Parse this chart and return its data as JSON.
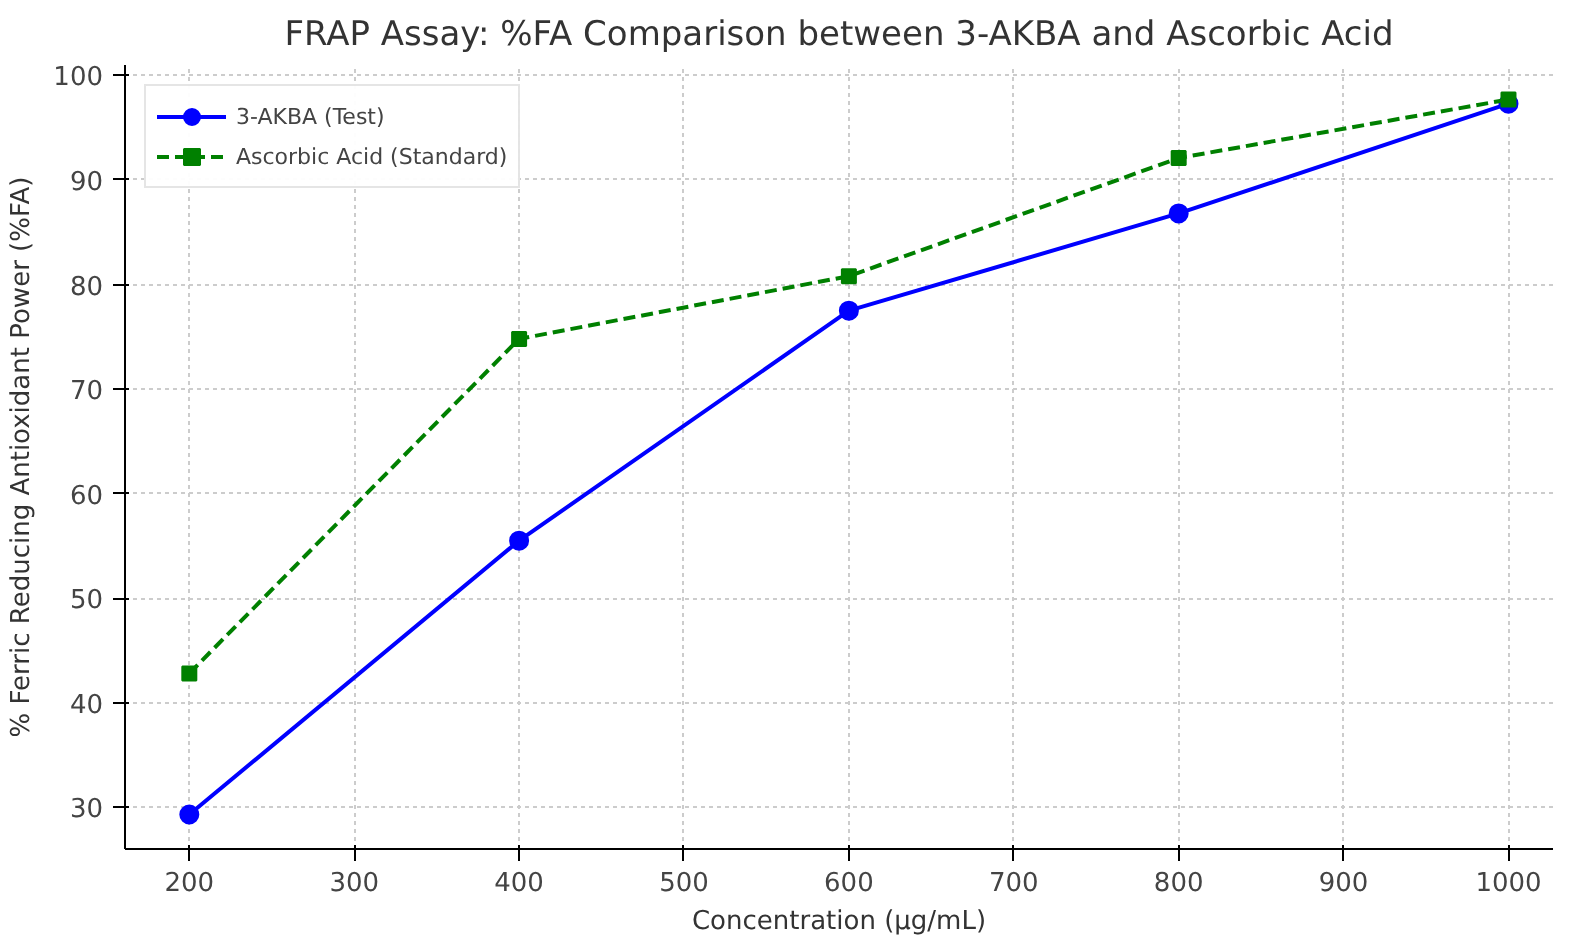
{
  "chart_data": {
    "type": "line",
    "title": "FRAP Assay: %FA Comparison between 3-AKBA and Ascorbic Acid",
    "xlabel": "Concentration (μg/mL)",
    "ylabel": "% Ferric Reducing Antioxidant Power (%FA)",
    "x": [
      200,
      400,
      600,
      800,
      1000
    ],
    "series": [
      {
        "name": "3-AKBA (Test)",
        "color": "#0000ff",
        "values": [
          29.3,
          55.5,
          77.5,
          86.8,
          97.3
        ],
        "marker": "circle",
        "line_style": "solid"
      },
      {
        "name": "Ascorbic Acid (Standard)",
        "color": "#008000",
        "values": [
          42.8,
          74.8,
          80.8,
          92.1,
          97.7
        ],
        "marker": "square",
        "line_style": "dashed"
      }
    ],
    "xlim": [
      161,
      1027
    ],
    "ylim": [
      26,
      101
    ],
    "xticks": [
      200,
      300,
      400,
      500,
      600,
      700,
      800,
      900,
      1000
    ],
    "yticks": [
      30,
      40,
      50,
      60,
      70,
      80,
      90,
      100
    ],
    "grid": true,
    "legend": "top left"
  }
}
